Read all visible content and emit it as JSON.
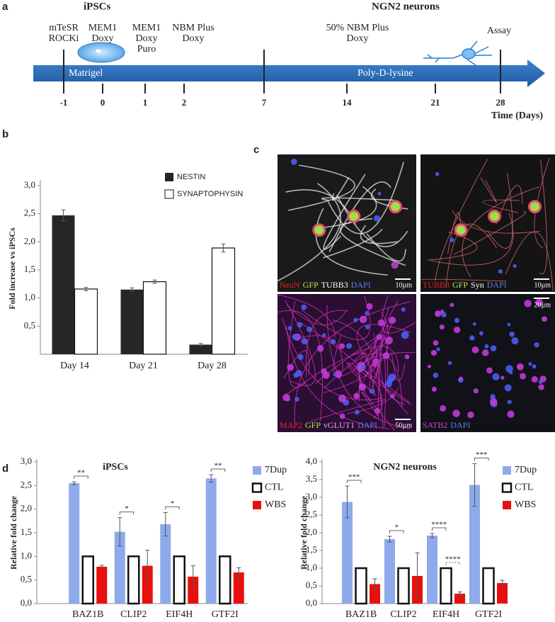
{
  "figure": {
    "panel_labels": [
      "a",
      "b",
      "c",
      "d"
    ],
    "timeline": {
      "headers": [
        "iPSCs",
        "NGN2 neurons"
      ],
      "stages": [
        [
          "mTeSR",
          "ROCKi"
        ],
        [
          "MEM1",
          "Doxy"
        ],
        [
          "MEM1",
          "Doxy",
          "Puro"
        ],
        [
          "NBM Plus",
          "Doxy"
        ],
        [
          "50% NBM Plus",
          "Doxy"
        ],
        [
          "Assay"
        ]
      ],
      "coatings": [
        "Matrigel",
        "Poly-D-lysine"
      ],
      "days": [
        -1,
        0,
        1,
        2,
        7,
        14,
        21,
        28
      ],
      "axis_label": "Time (Days)"
    },
    "micrographs": [
      {
        "stains": [
          {
            "name": "NeuN",
            "color": "#e8202a"
          },
          {
            "name": "GFP",
            "color": "#b9e64a"
          },
          {
            "name": "TUBB3",
            "color": "#ffffff"
          },
          {
            "name": "DAPI",
            "color": "#5a7cf0"
          }
        ],
        "scale_bar": "10µm"
      },
      {
        "stains": [
          {
            "name": "TUBB3",
            "color": "#e8202a"
          },
          {
            "name": "GFP",
            "color": "#b9e64a"
          },
          {
            "name": "Syn",
            "color": "#ffffff"
          },
          {
            "name": "DAPI",
            "color": "#5a7cf0"
          }
        ],
        "scale_bar": "10µm"
      },
      {
        "stains": [
          {
            "name": "MAP2",
            "color": "#e8202a"
          },
          {
            "name": "GFP",
            "color": "#b9e64a"
          },
          {
            "name": "vGLUT1",
            "color": "#e7a0f0"
          },
          {
            "name": "DAPI",
            "color": "#5a7cf0"
          }
        ],
        "scale_bar": "50µm"
      },
      {
        "stains": [
          {
            "name": "SATB2",
            "color": "#d040e0"
          },
          {
            "name": "DAPI",
            "color": "#5a7cf0"
          }
        ],
        "scale_bar": "20µm"
      }
    ]
  },
  "chart_data": [
    {
      "type": "bar",
      "ylabel": "Fold increase vs iPSCs",
      "categories": [
        "Day 14",
        "Day 21",
        "Day 28"
      ],
      "series": [
        {
          "name": "NESTIN",
          "color": "#262626",
          "values": [
            2.47,
            1.15,
            0.17
          ],
          "errors": [
            0.1,
            0.03,
            0.02
          ]
        },
        {
          "name": "SYNAPTOPHYSIN",
          "color": "#ffffff",
          "values": [
            1.16,
            1.29,
            1.89
          ],
          "errors": [
            0.03,
            0.03,
            0.07
          ]
        }
      ],
      "ylim": [
        0,
        3.05
      ],
      "yticks": [
        {
          "value": 0.5,
          "label": "0,5"
        },
        {
          "value": 1,
          "label": "1,0"
        },
        {
          "value": 1.5,
          "label": "1,5"
        },
        {
          "value": 2,
          "label": "2,0"
        },
        {
          "value": 2.5,
          "label": "2,5"
        },
        {
          "value": 3,
          "label": "3,0"
        }
      ],
      "legend": "upper right"
    },
    {
      "type": "bar",
      "title": "iPSCs",
      "ylabel": "Relative fold change",
      "categories": [
        "BAZ1B",
        "CLIP2",
        "EIF4H",
        "GTF2I"
      ],
      "series": [
        {
          "name": "7Dup",
          "color": "#8eaaea",
          "values": [
            2.55,
            1.52,
            1.68,
            2.65
          ],
          "errors": [
            0.03,
            0.3,
            0.25,
            0.08
          ]
        },
        {
          "name": "CTL",
          "color": "#ffffff",
          "values": [
            1,
            1,
            1,
            1
          ]
        },
        {
          "name": "WBS",
          "color": "#e8100e",
          "values": [
            0.78,
            0.8,
            0.57,
            0.66
          ],
          "errors": [
            0.03,
            0.33,
            0.23,
            0.1
          ]
        }
      ],
      "annotations": [
        "**",
        "*",
        "*",
        "**"
      ],
      "ylim": [
        0,
        3
      ],
      "yticks": [
        {
          "value": 0,
          "label": "0,0"
        },
        {
          "value": 0.5,
          "label": "0,5"
        },
        {
          "value": 1,
          "label": "1,0"
        },
        {
          "value": 1.5,
          "label": "1,5"
        },
        {
          "value": 2,
          "label": "2,0"
        },
        {
          "value": 2.5,
          "label": "2,5"
        },
        {
          "value": 3,
          "label": "3,0"
        }
      ],
      "legend": "right"
    },
    {
      "type": "bar",
      "title": "NGN2 neurons",
      "ylabel": "Relative fold change",
      "categories": [
        "BAZ1B",
        "CLIP2",
        "EIF4H",
        "GTF2I"
      ],
      "series": [
        {
          "name": "7Dup",
          "color": "#8eaaea",
          "values": [
            2.87,
            1.82,
            1.92,
            3.35
          ],
          "errors": [
            0.45,
            0.08,
            0.06,
            0.6
          ]
        },
        {
          "name": "CTL",
          "color": "#ffffff",
          "values": [
            1,
            1,
            1,
            1
          ]
        },
        {
          "name": "WBS",
          "color": "#e8100e",
          "values": [
            0.55,
            0.78,
            0.28,
            0.58
          ],
          "errors": [
            0.15,
            0.65,
            0.05,
            0.08
          ]
        }
      ],
      "annotations": [
        "***",
        "*",
        "****",
        "****",
        "***"
      ],
      "ylim": [
        0,
        4
      ],
      "yticks": [
        {
          "value": 0,
          "label": "0,0"
        },
        {
          "value": 0.5,
          "label": "0,5"
        },
        {
          "value": 1,
          "label": "1,0"
        },
        {
          "value": 1.5,
          "label": "1,5"
        },
        {
          "value": 2,
          "label": "2,0"
        },
        {
          "value": 2.5,
          "label": "2,5"
        },
        {
          "value": 3,
          "label": "3,0"
        },
        {
          "value": 3.5,
          "label": "3,5"
        },
        {
          "value": 4,
          "label": "4,0"
        }
      ],
      "legend": "right"
    }
  ]
}
